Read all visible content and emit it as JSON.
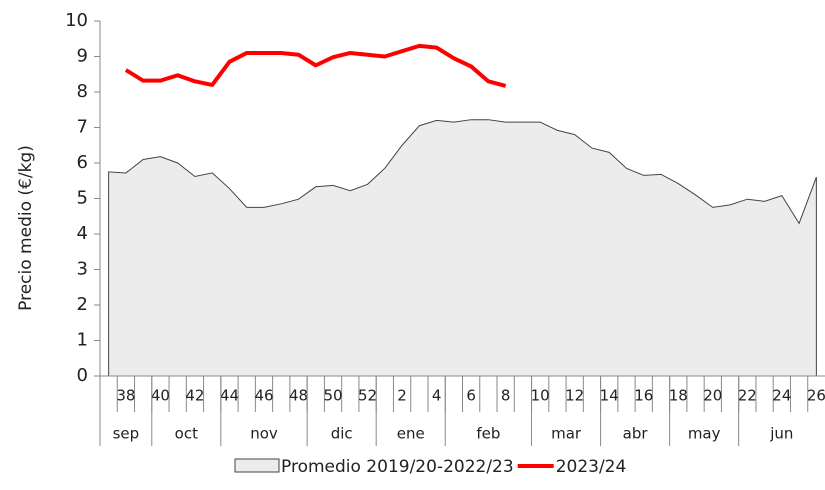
{
  "chart_data": {
    "type": "line",
    "y_label": "Precio medio (€/kg)",
    "categories": [
      null,
      "38",
      null,
      "40",
      null,
      "42",
      null,
      "44",
      null,
      "46",
      null,
      "48",
      null,
      "50",
      null,
      "52",
      null,
      "2",
      null,
      "4",
      null,
      "6",
      null,
      "8",
      null,
      "10",
      null,
      "12",
      null,
      "14",
      null,
      "16",
      null,
      "18",
      null,
      "20",
      null,
      "22",
      null,
      "24",
      null,
      "26"
    ],
    "months": [
      "sep",
      "oct",
      "nov",
      "dic",
      "ene",
      "feb",
      "mar",
      "abr",
      "may",
      "jun"
    ],
    "month_weeks": [
      3,
      4,
      5,
      4,
      4,
      5,
      4,
      4,
      4,
      5
    ],
    "ylim": [
      0,
      10
    ],
    "yticks": [
      0,
      1,
      2,
      3,
      4,
      5,
      6,
      7,
      8,
      9,
      10
    ],
    "grid": false,
    "legend": "bottom",
    "series": [
      {
        "name": "Promedio 2019/20-2022/23",
        "kind": "area",
        "color": "#ececec",
        "stroke": "#444444",
        "values": [
          5.75,
          5.72,
          6.1,
          6.18,
          6.0,
          5.62,
          5.72,
          5.28,
          4.75,
          4.75,
          4.85,
          4.98,
          5.33,
          5.37,
          5.22,
          5.4,
          5.85,
          6.5,
          7.05,
          7.2,
          7.15,
          7.22,
          7.22,
          7.15,
          7.15,
          7.15,
          6.92,
          6.8,
          6.42,
          6.3,
          5.85,
          5.65,
          5.68,
          5.42,
          5.1,
          4.75,
          4.82,
          4.98,
          4.92,
          5.08,
          4.3,
          5.6
        ]
      },
      {
        "name": "2023/24",
        "kind": "line",
        "color": "#ff0000",
        "values": [
          null,
          8.62,
          8.32,
          8.32,
          8.47,
          8.3,
          8.2,
          8.85,
          9.1,
          9.1,
          9.1,
          9.05,
          8.75,
          8.98,
          9.1,
          9.05,
          9.0,
          9.15,
          9.3,
          9.25,
          8.95,
          8.72,
          8.3,
          8.17,
          null,
          null,
          null,
          null,
          null,
          null,
          null,
          null,
          null,
          null,
          null,
          null,
          null,
          null,
          null,
          null,
          null,
          null
        ]
      }
    ]
  }
}
